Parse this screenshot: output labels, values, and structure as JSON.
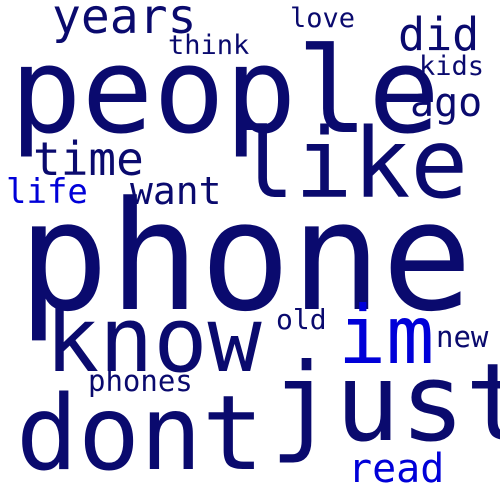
{
  "colors": {
    "navy": "#0a0a6e",
    "blue": "#0000d8"
  },
  "words": {
    "phone": "phone",
    "people": "people",
    "like": "like",
    "know": "know",
    "dont": "dont",
    "just": "just",
    "im": "im",
    "years": "years",
    "did": "did",
    "ago": "ago",
    "time": "time",
    "want": "want",
    "life": "life",
    "love": "love",
    "think": "think",
    "kids": "kids",
    "old": "old",
    "new": "new",
    "phones": "phones",
    "read": "read"
  }
}
